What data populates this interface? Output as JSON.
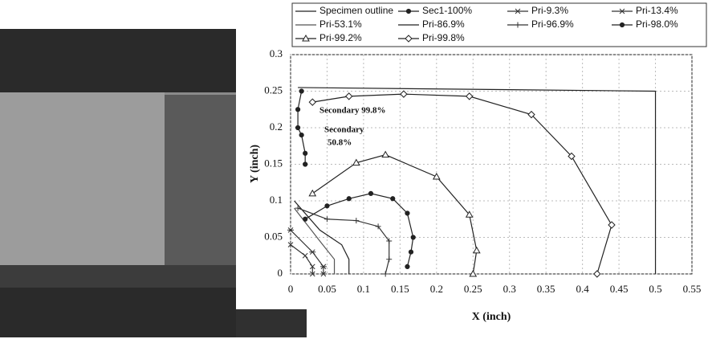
{
  "chart_data": {
    "type": "line",
    "x_label": "X (inch)",
    "y_label": "Y (inch)",
    "xlim": [
      0,
      0.55
    ],
    "ylim": [
      0,
      0.3
    ],
    "xticks": [
      0,
      0.05,
      0.1,
      0.15,
      0.2,
      0.25,
      0.3,
      0.35,
      0.4,
      0.45,
      0.5,
      0.55
    ],
    "yticks": [
      0,
      0.05,
      0.1,
      0.15,
      0.2,
      0.25,
      0.3
    ],
    "grid": true,
    "annotations": [
      "Secondary 99.8%",
      "Secondary",
      "50.8%"
    ],
    "series": [
      {
        "name": "Specimen outline",
        "color": "#222",
        "marker": "none",
        "x": [
          0.01,
          0.5,
          0.5
        ],
        "values": [
          0.255,
          0.25,
          0
        ]
      },
      {
        "name": "Sec1-100%",
        "color": "#222",
        "marker": "circle",
        "x": [
          0.015,
          0.01,
          0.01,
          0.015,
          0.02,
          0.02
        ],
        "values": [
          0.25,
          0.225,
          0.2,
          0.19,
          0.165,
          0.15
        ]
      },
      {
        "name": "Pri-9.3%",
        "color": "#333",
        "marker": "x",
        "x": [
          0,
          0.02,
          0.03,
          0.03
        ],
        "values": [
          0.04,
          0.025,
          0.01,
          0
        ]
      },
      {
        "name": "Pri-13.4%",
        "color": "#333",
        "marker": "star",
        "x": [
          0,
          0.03,
          0.045,
          0.045
        ],
        "values": [
          0.06,
          0.03,
          0.01,
          0
        ]
      },
      {
        "name": "Pri-53.1%",
        "color": "#555",
        "marker": "none",
        "x": [
          0.005,
          0.04,
          0.06,
          0.06
        ],
        "values": [
          0.09,
          0.045,
          0.02,
          0
        ]
      },
      {
        "name": "Pri-86.9%",
        "color": "#222",
        "marker": "none",
        "x": [
          0.005,
          0.04,
          0.07,
          0.08,
          0.08
        ],
        "values": [
          0.1,
          0.06,
          0.04,
          0.02,
          0
        ]
      },
      {
        "name": "Pri-96.9%",
        "color": "#333",
        "marker": "plus",
        "x": [
          0.01,
          0.05,
          0.09,
          0.12,
          0.135,
          0.135,
          0.13
        ],
        "values": [
          0.09,
          0.075,
          0.073,
          0.065,
          0.045,
          0.02,
          0
        ]
      },
      {
        "name": "Pri-98.0%",
        "color": "#222",
        "marker": "circle",
        "x": [
          0.02,
          0.05,
          0.08,
          0.11,
          0.14,
          0.16,
          0.168,
          0.165,
          0.16
        ],
        "values": [
          0.075,
          0.093,
          0.103,
          0.11,
          0.103,
          0.083,
          0.05,
          0.03,
          0.01
        ]
      },
      {
        "name": "Pri-99.2%",
        "color": "#222",
        "marker": "triangle",
        "x": [
          0.03,
          0.09,
          0.13,
          0.2,
          0.245,
          0.255,
          0.25
        ],
        "values": [
          0.11,
          0.152,
          0.163,
          0.133,
          0.081,
          0.032,
          0
        ]
      },
      {
        "name": "Pri-99.8%",
        "color": "#222",
        "marker": "diamond",
        "x": [
          0.03,
          0.08,
          0.155,
          0.245,
          0.33,
          0.385,
          0.44,
          0.42
        ],
        "values": [
          0.235,
          0.243,
          0.246,
          0.243,
          0.218,
          0.161,
          0.067,
          0
        ]
      }
    ]
  }
}
